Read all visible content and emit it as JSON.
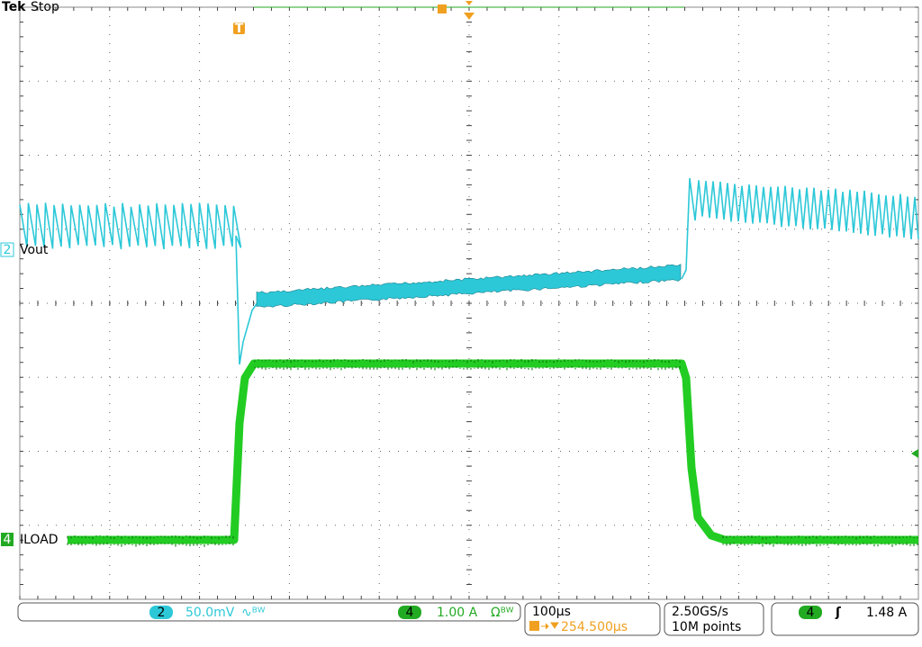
{
  "header": {
    "brand": "Tek",
    "status": "Stop",
    "trigger_marker": "T"
  },
  "channels": [
    {
      "number": "2",
      "label": "Vout"
    },
    {
      "number": "4",
      "label": "ILOAD"
    }
  ],
  "status_bar": {
    "ch2_number": "2",
    "ch2_scale": "50.0mV",
    "ch2_icon": "∿ᴮᵂ",
    "ch4_number": "4",
    "ch4_scale": "1.00 A",
    "ch4_icon": "Ωᴮᵂ",
    "timebase": "100µs",
    "trigger_position": "254.500µs",
    "sample_rate": "2.50GS/s",
    "record_length": "10M points",
    "trigger_source": "4",
    "trigger_slope": "ʃ",
    "trigger_level": "1.48 A"
  }
}
